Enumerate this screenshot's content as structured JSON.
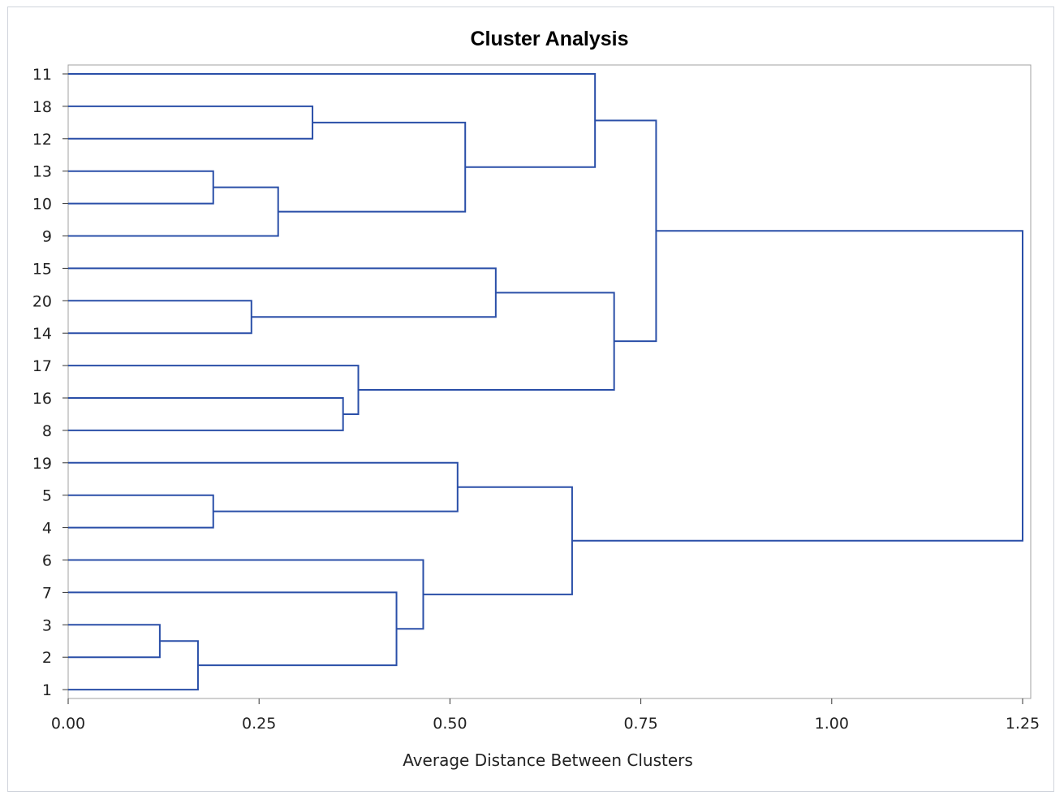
{
  "chart_data": {
    "type": "dendrogram",
    "title": "Cluster Analysis",
    "xlabel": "Average Distance Between Clusters",
    "ylabel": "",
    "xlim": [
      0,
      1.25
    ],
    "x_ticks": [
      "0.00",
      "0.25",
      "0.50",
      "0.75",
      "1.00",
      "1.25"
    ],
    "x_tick_values": [
      0,
      0.25,
      0.5,
      0.75,
      1.0,
      1.25
    ],
    "leaf_order": [
      "11",
      "18",
      "12",
      "13",
      "10",
      "9",
      "15",
      "20",
      "14",
      "17",
      "16",
      "8",
      "19",
      "5",
      "4",
      "6",
      "7",
      "3",
      "2",
      "1"
    ],
    "merges": [
      {
        "id": "c1",
        "children": [
          "3",
          "2"
        ],
        "height": 0.12
      },
      {
        "id": "c2",
        "children": [
          "c1",
          "1"
        ],
        "height": 0.17
      },
      {
        "id": "c3",
        "children": [
          "5",
          "4"
        ],
        "height": 0.19
      },
      {
        "id": "c4",
        "children": [
          "13",
          "10"
        ],
        "height": 0.19
      },
      {
        "id": "c5",
        "children": [
          "20",
          "14"
        ],
        "height": 0.24
      },
      {
        "id": "c6",
        "children": [
          "c4",
          "9"
        ],
        "height": 0.275
      },
      {
        "id": "c7",
        "children": [
          "18",
          "12"
        ],
        "height": 0.32
      },
      {
        "id": "c8",
        "children": [
          "16",
          "8"
        ],
        "height": 0.36
      },
      {
        "id": "c9",
        "children": [
          "17",
          "c8"
        ],
        "height": 0.38
      },
      {
        "id": "c10",
        "children": [
          "7",
          "c2"
        ],
        "height": 0.43
      },
      {
        "id": "c11",
        "children": [
          "6",
          "c10"
        ],
        "height": 0.465
      },
      {
        "id": "c12",
        "children": [
          "19",
          "c3"
        ],
        "height": 0.51
      },
      {
        "id": "c13",
        "children": [
          "c7",
          "c6"
        ],
        "height": 0.52
      },
      {
        "id": "c14",
        "children": [
          "15",
          "c5"
        ],
        "height": 0.56
      },
      {
        "id": "c15",
        "children": [
          "c12",
          "c11"
        ],
        "height": 0.66
      },
      {
        "id": "c16",
        "children": [
          "11",
          "c13"
        ],
        "height": 0.69
      },
      {
        "id": "c17",
        "children": [
          "c14",
          "c9"
        ],
        "height": 0.715
      },
      {
        "id": "c18",
        "children": [
          "c16",
          "c17"
        ],
        "height": 0.77
      },
      {
        "id": "c19",
        "children": [
          "c18",
          "c15"
        ],
        "height": 1.25
      }
    ],
    "line_color": "#2a4fa8",
    "grid": false,
    "legend": "none"
  }
}
